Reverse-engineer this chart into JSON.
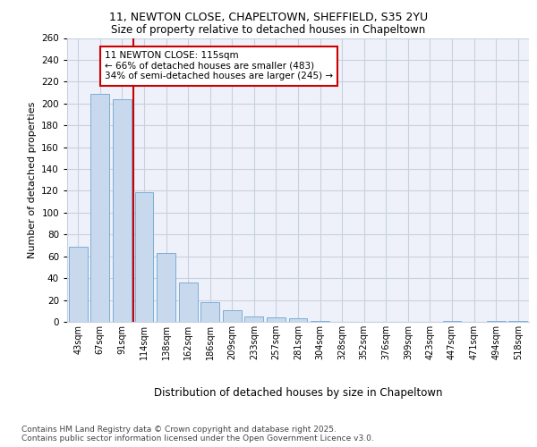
{
  "title_line1": "11, NEWTON CLOSE, CHAPELTOWN, SHEFFIELD, S35 2YU",
  "title_line2": "Size of property relative to detached houses in Chapeltown",
  "xlabel": "Distribution of detached houses by size in Chapeltown",
  "ylabel": "Number of detached properties",
  "categories": [
    "43sqm",
    "67sqm",
    "91sqm",
    "114sqm",
    "138sqm",
    "162sqm",
    "186sqm",
    "209sqm",
    "233sqm",
    "257sqm",
    "281sqm",
    "304sqm",
    "328sqm",
    "352sqm",
    "376sqm",
    "399sqm",
    "423sqm",
    "447sqm",
    "471sqm",
    "494sqm",
    "518sqm"
  ],
  "values": [
    69,
    209,
    204,
    119,
    63,
    36,
    18,
    11,
    5,
    4,
    3,
    1,
    0,
    0,
    0,
    0,
    0,
    1,
    0,
    1,
    1
  ],
  "bar_color": "#c9d9ed",
  "bar_edge_color": "#7aaed6",
  "grid_color": "#c8d0e0",
  "background_color": "#eef1f9",
  "vline_x_index": 2.5,
  "vline_color": "#cc0000",
  "annotation_text": "11 NEWTON CLOSE: 115sqm\n← 66% of detached houses are smaller (483)\n34% of semi-detached houses are larger (245) →",
  "annotation_box_color": "#cc0000",
  "footnote": "Contains HM Land Registry data © Crown copyright and database right 2025.\nContains public sector information licensed under the Open Government Licence v3.0.",
  "ylim": [
    0,
    260
  ],
  "yticks": [
    0,
    20,
    40,
    60,
    80,
    100,
    120,
    140,
    160,
    180,
    200,
    220,
    240,
    260
  ],
  "title_fontsize": 9,
  "subtitle_fontsize": 8.5,
  "ylabel_fontsize": 8,
  "xlabel_fontsize": 8.5,
  "footnote_fontsize": 6.5,
  "annotation_fontsize": 7.5,
  "xtick_fontsize": 7,
  "ytick_fontsize": 7.5
}
